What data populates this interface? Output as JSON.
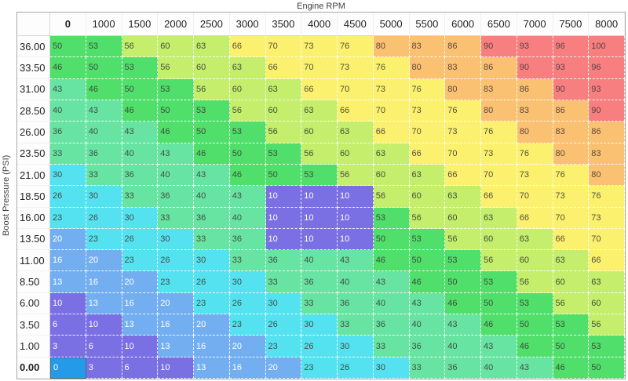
{
  "axes": {
    "x_label": "Engine RPM",
    "y_label": "Boost Pressure (PSI)"
  },
  "table": {
    "col_headers": [
      "0",
      "1000",
      "1500",
      "2000",
      "2500",
      "3000",
      "3500",
      "4000",
      "4500",
      "5000",
      "5500",
      "6000",
      "6500",
      "7000",
      "7500",
      "8000"
    ],
    "row_headers": [
      "36.00",
      "33.50",
      "31.00",
      "28.50",
      "26.00",
      "23.50",
      "21.00",
      "18.50",
      "16.00",
      "13.50",
      "11.00",
      "8.50",
      "6.00",
      "3.50",
      "1.00",
      "0.00"
    ],
    "selected": {
      "row_index": 15,
      "col_index": 0,
      "row": "0.00",
      "col": "0",
      "value": 0
    }
  },
  "chart_data": {
    "type": "heatmap",
    "title": "Engine RPM",
    "xlabel": "Engine RPM",
    "ylabel": "Boost Pressure (PSI)",
    "x": [
      0,
      1000,
      1500,
      2000,
      2500,
      3000,
      3500,
      4000,
      4500,
      5000,
      5500,
      6000,
      6500,
      7000,
      7500,
      8000
    ],
    "y": [
      36.0,
      33.5,
      31.0,
      28.5,
      26.0,
      23.5,
      21.0,
      18.5,
      16.0,
      13.5,
      11.0,
      8.5,
      6.0,
      3.5,
      1.0,
      0.0
    ],
    "values": [
      [
        50,
        53,
        56,
        60,
        63,
        66,
        70,
        73,
        76,
        80,
        83,
        86,
        90,
        93,
        96,
        100
      ],
      [
        46,
        50,
        53,
        56,
        60,
        63,
        66,
        70,
        73,
        76,
        80,
        83,
        86,
        90,
        93,
        96
      ],
      [
        43,
        46,
        50,
        53,
        56,
        60,
        63,
        66,
        70,
        73,
        76,
        80,
        83,
        86,
        90,
        93
      ],
      [
        40,
        43,
        46,
        50,
        53,
        56,
        60,
        63,
        66,
        70,
        73,
        76,
        80,
        83,
        86,
        90
      ],
      [
        36,
        40,
        43,
        46,
        50,
        53,
        56,
        60,
        63,
        66,
        70,
        73,
        76,
        80,
        83,
        86
      ],
      [
        33,
        36,
        40,
        43,
        46,
        50,
        53,
        56,
        60,
        63,
        66,
        70,
        73,
        76,
        80,
        83
      ],
      [
        30,
        33,
        36,
        40,
        43,
        46,
        50,
        53,
        56,
        60,
        63,
        66,
        70,
        73,
        76,
        80
      ],
      [
        26,
        30,
        33,
        36,
        40,
        43,
        10,
        10,
        10,
        56,
        60,
        63,
        66,
        70,
        73,
        76
      ],
      [
        23,
        26,
        30,
        33,
        36,
        40,
        10,
        10,
        10,
        53,
        56,
        60,
        63,
        66,
        70,
        73
      ],
      [
        20,
        23,
        26,
        30,
        33,
        36,
        10,
        10,
        10,
        50,
        53,
        56,
        60,
        63,
        66,
        70
      ],
      [
        16,
        20,
        23,
        26,
        30,
        33,
        36,
        40,
        43,
        46,
        50,
        53,
        56,
        60,
        63,
        66
      ],
      [
        13,
        16,
        20,
        23,
        26,
        30,
        33,
        36,
        40,
        43,
        46,
        50,
        53,
        56,
        60,
        63
      ],
      [
        10,
        13,
        16,
        20,
        23,
        26,
        30,
        33,
        36,
        40,
        43,
        46,
        50,
        53,
        56,
        60
      ],
      [
        6,
        10,
        13,
        16,
        20,
        23,
        26,
        30,
        33,
        36,
        40,
        43,
        46,
        50,
        53,
        56
      ],
      [
        3,
        6,
        10,
        13,
        16,
        20,
        23,
        26,
        30,
        33,
        36,
        40,
        43,
        46,
        50,
        53
      ],
      [
        0,
        3,
        6,
        10,
        13,
        16,
        20,
        23,
        26,
        30,
        33,
        36,
        40,
        43,
        46,
        50
      ]
    ],
    "value_range": [
      0,
      100
    ],
    "legend_position": "none",
    "grid": "dashed-white"
  },
  "colors": {
    "buckets": [
      {
        "max": 12,
        "bg": "#7b6fe4",
        "text": "#ffffff"
      },
      {
        "max": 22,
        "bg": "#73aff0",
        "text": "#ffffff"
      },
      {
        "max": 32,
        "bg": "#55e2f0",
        "text": "#41504a"
      },
      {
        "max": 45,
        "bg": "#68e4a2",
        "text": "#41504a"
      },
      {
        "max": 55,
        "bg": "#4fdf6a",
        "text": "#3e4f3e"
      },
      {
        "max": 65,
        "bg": "#c4ee6c",
        "text": "#474f38"
      },
      {
        "max": 78,
        "bg": "#fbf16e",
        "text": "#55513a"
      },
      {
        "max": 88,
        "bg": "#fbc172",
        "text": "#5f4a3a"
      },
      {
        "max": 999,
        "bg": "#f87f80",
        "text": "#5f3f44"
      }
    ],
    "selected_bg": "#259ae9",
    "selected_text": "#ffffff",
    "selected_border": "#4a6d7c",
    "table_border": "#a9a9a9"
  }
}
